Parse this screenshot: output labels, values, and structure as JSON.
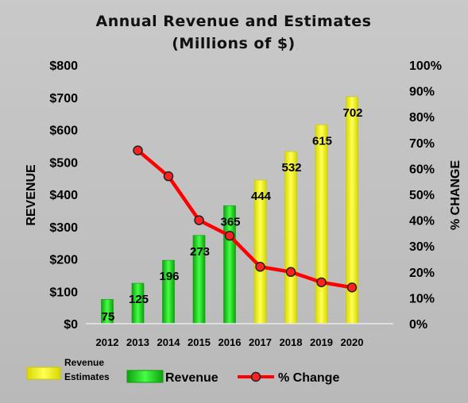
{
  "chart_data": {
    "type": "bar",
    "title": [
      "Annual Revenue and Estimates",
      "(Millions of $)"
    ],
    "ylabel": "REVENUE",
    "y2label": "% CHANGE",
    "categories": [
      "2012",
      "2013",
      "2014",
      "2015",
      "2016",
      "2017",
      "2018",
      "2019",
      "2020"
    ],
    "y_ticks": [
      "$0",
      "$100",
      "$200",
      "$300",
      "$400",
      "$500",
      "$600",
      "$700",
      "$800"
    ],
    "y2_ticks": [
      "0%",
      "10%",
      "20%",
      "30%",
      "40%",
      "50%",
      "60%",
      "70%",
      "80%",
      "90%",
      "100%"
    ],
    "ylim": [
      0,
      800
    ],
    "y2lim": [
      0,
      1.0
    ],
    "series": [
      {
        "name": "Revenue",
        "type": "bar",
        "color": "#22dd22",
        "values": [
          75,
          125,
          196,
          273,
          365,
          null,
          null,
          null,
          null
        ],
        "labels": [
          "75",
          "125",
          "196",
          "273",
          "365",
          "",
          "",
          "",
          ""
        ]
      },
      {
        "name": "Revenue Estimates",
        "type": "bar",
        "color": "#ffff22",
        "values": [
          null,
          null,
          null,
          null,
          null,
          444,
          532,
          615,
          702
        ],
        "labels": [
          "",
          "",
          "",
          "",
          "",
          "444",
          "532",
          "615",
          "702"
        ]
      },
      {
        "name": "% Change",
        "type": "line",
        "axis": "secondary",
        "color": "#ff0000",
        "values": [
          null,
          0.67,
          0.57,
          0.4,
          0.34,
          0.22,
          0.2,
          0.16,
          0.14
        ]
      }
    ],
    "legend": {
      "position": "bottom",
      "estimates_label_lines": [
        "Revenue",
        "Estimates"
      ],
      "revenue_label": "Revenue",
      "change_label": "% Change"
    },
    "grid": false
  }
}
